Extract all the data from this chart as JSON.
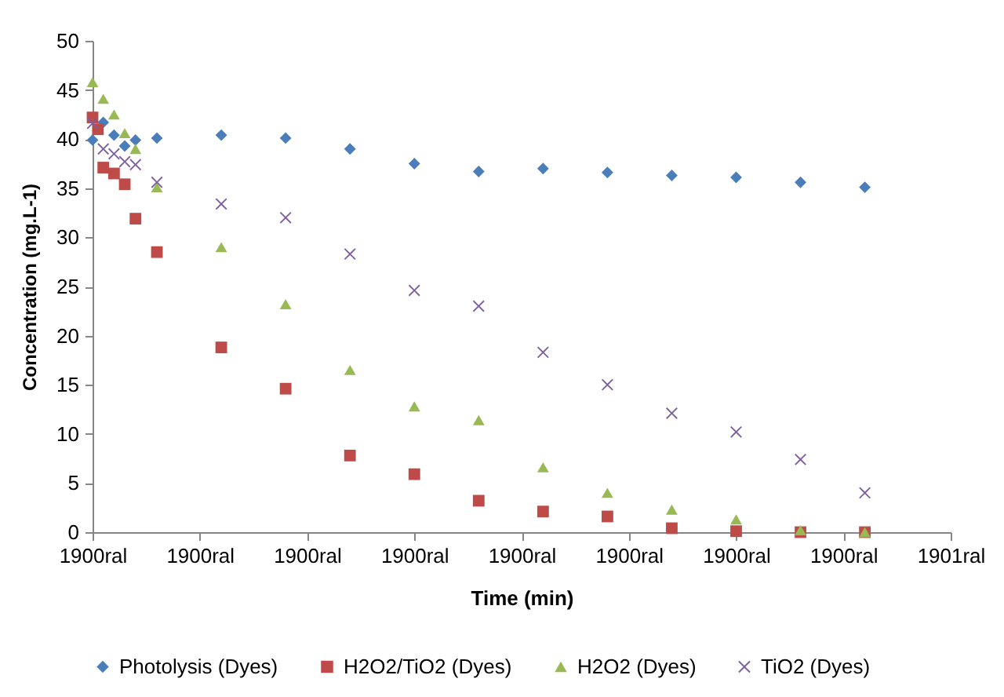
{
  "chart_data": {
    "type": "scatter",
    "xlabel": "Time (min)",
    "ylabel": "Concentration (mg.L-1)",
    "categories": [
      "1900ral",
      null,
      null,
      null,
      null,
      null,
      null,
      null,
      null,
      null,
      null,
      null,
      null,
      null,
      null,
      null,
      null,
      null,
      null,
      null,
      "1900ral",
      null,
      null,
      null,
      null,
      null,
      null,
      null,
      null,
      null,
      null,
      null,
      null,
      null,
      null,
      null,
      null,
      null,
      null,
      null,
      "1900ral",
      null,
      null,
      null,
      null,
      null,
      null,
      null,
      null,
      null,
      null,
      null,
      null,
      null,
      null,
      null,
      null,
      null,
      null,
      null,
      "1900ral",
      null,
      null,
      null,
      null,
      null,
      null,
      null,
      null,
      null,
      null,
      null,
      null,
      null,
      null,
      null,
      null,
      null,
      null,
      null,
      "1900ral",
      null,
      null,
      null,
      null,
      null,
      null,
      null,
      null,
      null,
      null,
      null,
      null,
      null,
      null,
      null,
      null,
      null,
      null,
      null,
      "1900ral",
      null,
      null,
      null,
      null,
      null,
      null,
      null,
      null,
      null,
      null,
      null,
      null,
      null,
      null,
      null,
      null,
      null,
      null,
      null,
      "1900ral",
      null,
      null,
      null,
      null,
      null,
      null,
      null,
      null,
      null,
      null,
      null,
      null,
      null,
      null,
      null,
      null,
      null,
      null,
      null,
      "1900ral",
      null,
      null,
      null,
      null,
      null,
      null,
      null,
      null,
      null,
      null,
      null,
      null,
      null,
      null,
      null,
      null,
      null,
      null,
      null,
      "1901ral"
    ],
    "ylim": [
      0,
      50
    ],
    "yticks": [
      0,
      5,
      10,
      15,
      20,
      25,
      30,
      35,
      40,
      45,
      50
    ],
    "legend": "bottom",
    "series": [
      {
        "name": "Photolysis (Dyes)",
        "color": "#4a7ebb",
        "marker": "diamond",
        "values": [
          39.9,
          null,
          41.7,
          null,
          40.4,
          null,
          39.3,
          null,
          39.9,
          null,
          null,
          null,
          40.1,
          null,
          null,
          null,
          null,
          null,
          null,
          null,
          null,
          null,
          null,
          null,
          40.4,
          null,
          null,
          null,
          null,
          null,
          null,
          null,
          null,
          null,
          null,
          null,
          40.1,
          null,
          null,
          null,
          null,
          null,
          null,
          null,
          null,
          null,
          null,
          null,
          39.0,
          null,
          null,
          null,
          null,
          null,
          null,
          null,
          null,
          null,
          null,
          null,
          37.5,
          null,
          null,
          null,
          null,
          null,
          null,
          null,
          null,
          null,
          null,
          null,
          36.7,
          null,
          null,
          null,
          null,
          null,
          null,
          null,
          null,
          null,
          null,
          null,
          37.0,
          null,
          null,
          null,
          null,
          null,
          null,
          null,
          null,
          null,
          null,
          null,
          36.6,
          null,
          null,
          null,
          null,
          null,
          null,
          null,
          null,
          null,
          null,
          null,
          36.3,
          null,
          null,
          null,
          null,
          null,
          null,
          null,
          null,
          null,
          null,
          null,
          36.1,
          null,
          null,
          null,
          null,
          null,
          null,
          null,
          null,
          null,
          null,
          null,
          35.6,
          null,
          null,
          null,
          null,
          null,
          null,
          null,
          null,
          null,
          null,
          null,
          35.1,
          null,
          null,
          null,
          null,
          null,
          null,
          null,
          null,
          null,
          null,
          null,
          null,
          null,
          null,
          null,
          null
        ]
      },
      {
        "name": "H2O2/TiO2 (Dyes)",
        "color": "#be4b48",
        "marker": "square",
        "values": [
          42.2,
          41.0,
          37.1,
          null,
          36.5,
          null,
          35.4,
          null,
          31.9,
          null,
          null,
          null,
          28.5,
          null,
          null,
          null,
          null,
          null,
          null,
          null,
          null,
          null,
          null,
          null,
          18.8,
          null,
          null,
          null,
          null,
          null,
          null,
          null,
          null,
          null,
          null,
          null,
          14.6,
          null,
          null,
          null,
          null,
          null,
          null,
          null,
          null,
          null,
          null,
          null,
          7.8,
          null,
          null,
          null,
          null,
          null,
          null,
          null,
          null,
          null,
          null,
          null,
          5.9,
          null,
          null,
          null,
          null,
          null,
          null,
          null,
          null,
          null,
          null,
          null,
          3.2,
          null,
          null,
          null,
          null,
          null,
          null,
          null,
          null,
          null,
          null,
          null,
          2.1,
          null,
          null,
          null,
          null,
          null,
          null,
          null,
          null,
          null,
          null,
          null,
          1.6,
          null,
          null,
          null,
          null,
          null,
          null,
          null,
          null,
          null,
          null,
          null,
          0.4,
          null,
          null,
          null,
          null,
          null,
          null,
          null,
          null,
          null,
          null,
          null,
          0.1,
          null,
          null,
          null,
          null,
          null,
          null,
          null,
          null,
          null,
          null,
          null,
          0.0,
          null,
          null,
          null,
          null,
          null,
          null,
          null,
          null,
          null,
          null,
          null,
          0.0,
          null,
          null,
          null,
          null,
          null,
          null,
          null,
          null,
          null,
          null,
          null,
          null,
          null,
          null,
          null,
          null
        ]
      },
      {
        "name": "H2O2 (Dyes)",
        "color": "#98b954",
        "marker": "triangle",
        "values": [
          45.8,
          null,
          44.1,
          null,
          42.5,
          null,
          40.6,
          null,
          39.0,
          null,
          null,
          null,
          35.1,
          null,
          null,
          null,
          null,
          null,
          null,
          null,
          null,
          null,
          null,
          null,
          29.0,
          null,
          null,
          null,
          null,
          null,
          null,
          null,
          null,
          null,
          null,
          null,
          23.2,
          null,
          null,
          null,
          null,
          null,
          null,
          null,
          null,
          null,
          null,
          null,
          16.5,
          null,
          null,
          null,
          null,
          null,
          null,
          null,
          null,
          null,
          null,
          null,
          12.8,
          null,
          null,
          null,
          null,
          null,
          null,
          null,
          null,
          null,
          null,
          null,
          11.4,
          null,
          null,
          null,
          null,
          null,
          null,
          null,
          null,
          null,
          null,
          null,
          6.6,
          null,
          null,
          null,
          null,
          null,
          null,
          null,
          null,
          null,
          null,
          null,
          4.0,
          null,
          null,
          null,
          null,
          null,
          null,
          null,
          null,
          null,
          null,
          null,
          2.3,
          null,
          null,
          null,
          null,
          null,
          null,
          null,
          null,
          null,
          null,
          null,
          1.3,
          null,
          null,
          null,
          null,
          null,
          null,
          null,
          null,
          null,
          null,
          null,
          0.2,
          null,
          null,
          null,
          null,
          null,
          null,
          null,
          null,
          null,
          null,
          null,
          0.0,
          null,
          null,
          null,
          null,
          null,
          null,
          null,
          null,
          null,
          null,
          null,
          null,
          null,
          null,
          null,
          null
        ]
      },
      {
        "name": "TiO2 (Dyes)",
        "color": "#7d60a0",
        "marker": "cross",
        "values": [
          41.6,
          null,
          39.0,
          null,
          38.5,
          null,
          37.7,
          null,
          37.4,
          null,
          null,
          null,
          35.6,
          null,
          null,
          null,
          null,
          null,
          null,
          null,
          null,
          null,
          null,
          null,
          33.4,
          null,
          null,
          null,
          null,
          null,
          null,
          null,
          null,
          null,
          null,
          null,
          32.0,
          null,
          null,
          null,
          null,
          null,
          null,
          null,
          null,
          null,
          null,
          null,
          28.3,
          null,
          null,
          null,
          null,
          null,
          null,
          null,
          null,
          null,
          null,
          null,
          24.6,
          null,
          null,
          null,
          null,
          null,
          null,
          null,
          null,
          null,
          null,
          null,
          23.0,
          null,
          null,
          null,
          null,
          null,
          null,
          null,
          null,
          null,
          null,
          null,
          18.3,
          null,
          null,
          null,
          null,
          null,
          null,
          null,
          null,
          null,
          null,
          null,
          15.0,
          null,
          null,
          null,
          null,
          null,
          null,
          null,
          null,
          null,
          null,
          null,
          12.1,
          null,
          null,
          null,
          null,
          null,
          null,
          null,
          null,
          null,
          null,
          null,
          10.2,
          null,
          null,
          null,
          null,
          null,
          null,
          null,
          null,
          null,
          null,
          null,
          7.4,
          null,
          null,
          null,
          null,
          null,
          null,
          null,
          null,
          null,
          null,
          null,
          4.0,
          null,
          null,
          null,
          null,
          null,
          null,
          null,
          null,
          null,
          null,
          null,
          null,
          null,
          null,
          null,
          null
        ]
      }
    ]
  }
}
